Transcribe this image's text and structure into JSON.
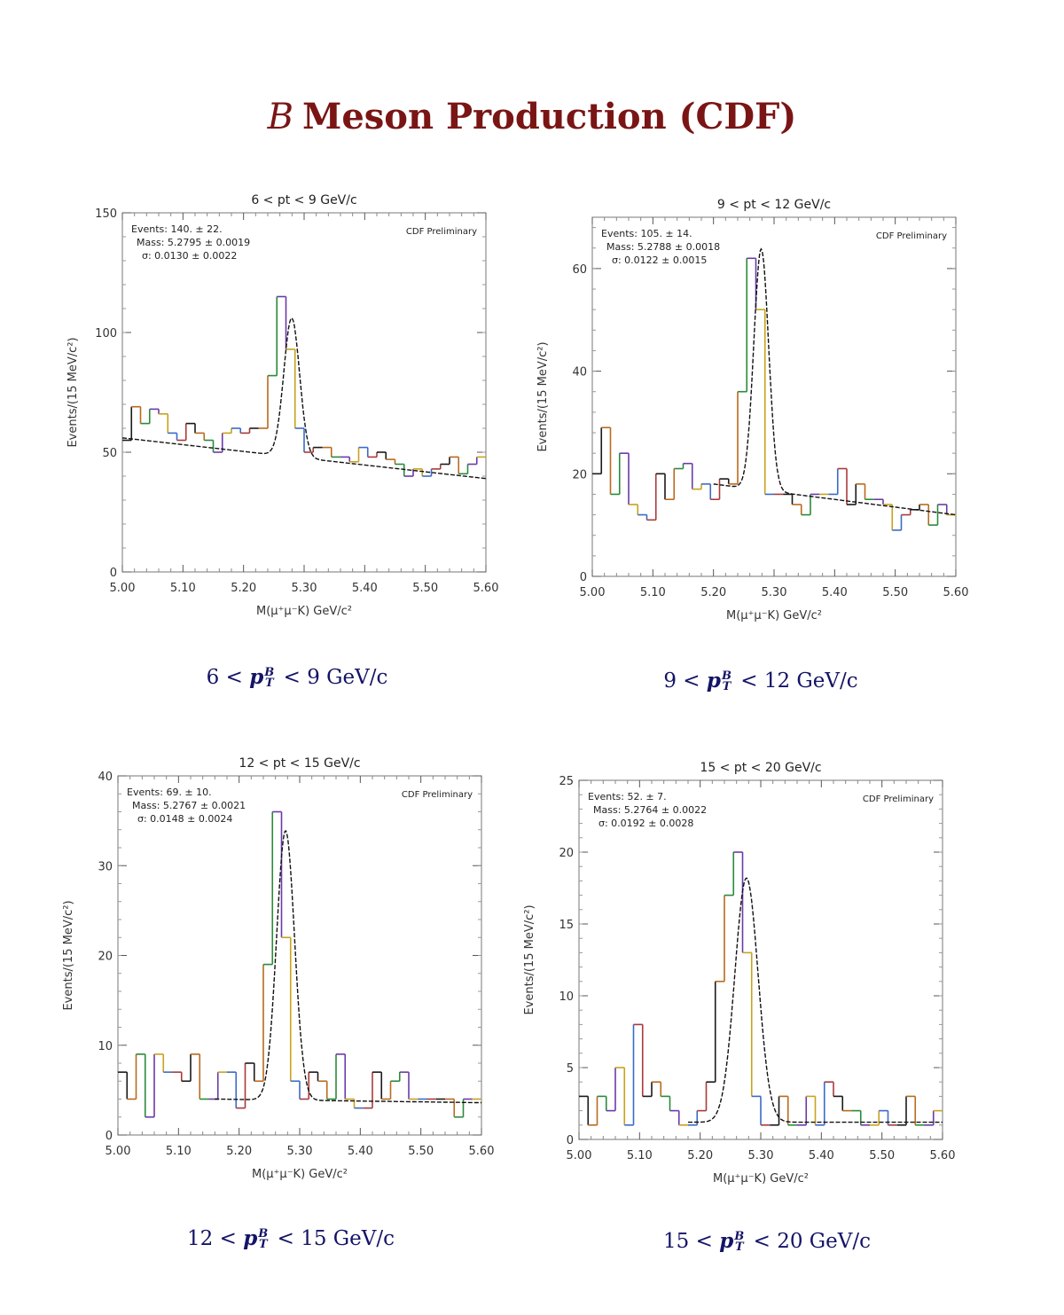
{
  "page_title": {
    "symbol": "B",
    "text": "Meson Production (CDF)"
  },
  "captions": [
    {
      "lo": "6",
      "sym": "p",
      "sup": "B",
      "sub": "T",
      "hi": "9 GeV/c"
    },
    {
      "lo": "9",
      "sym": "p",
      "sup": "B",
      "sub": "T",
      "hi": "12 GeV/c"
    },
    {
      "lo": "12",
      "sym": "p",
      "sup": "B",
      "sub": "T",
      "hi": "15 GeV/c"
    },
    {
      "lo": "15",
      "sym": "p",
      "sup": "B",
      "sub": "T",
      "hi": "20 GeV/c"
    }
  ],
  "chart_data": [
    {
      "type": "line",
      "title": "6 < pt < 9 GeV/c",
      "xlabel": "M(μ⁺μ⁻K) GeV/c²",
      "ylabel": "Events/(15 MeV/c²)",
      "xlim": [
        5.0,
        5.6
      ],
      "ylim": [
        0,
        150
      ],
      "xticks": [
        "5.00",
        "5.10",
        "5.20",
        "5.30",
        "5.40",
        "5.50",
        "5.60"
      ],
      "yticks": [
        0,
        50,
        100,
        150
      ],
      "stats": [
        "Events: 140. ± 22.",
        "Mass: 5.2795 ± 0.0019",
        "σ: 0.0130 ± 0.0022"
      ],
      "annotation": "CDF Preliminary",
      "bin_edges": [
        5.0,
        5.015,
        5.03,
        5.045,
        5.06,
        5.075,
        5.09,
        5.105,
        5.12,
        5.135,
        5.15,
        5.165,
        5.18,
        5.195,
        5.21,
        5.225,
        5.24,
        5.255,
        5.27,
        5.285,
        5.3,
        5.315,
        5.33,
        5.345,
        5.36,
        5.375,
        5.39,
        5.405,
        5.42,
        5.435,
        5.45,
        5.465,
        5.48,
        5.495,
        5.51,
        5.525,
        5.54,
        5.555,
        5.57,
        5.585,
        5.6
      ],
      "counts": [
        55,
        69,
        62,
        68,
        66,
        58,
        55,
        62,
        58,
        55,
        50,
        58,
        60,
        58,
        60,
        60,
        82,
        115,
        93,
        60,
        50,
        52,
        52,
        48,
        48,
        46,
        52,
        48,
        50,
        47,
        45,
        40,
        43,
        40,
        43,
        45,
        48,
        41,
        45,
        48
      ],
      "fit": {
        "background": [
          [
            5.0,
            56
          ],
          [
            5.6,
            39
          ]
        ],
        "mean": 5.2795,
        "sigma": 0.013,
        "amplitude": 58
      }
    },
    {
      "type": "line",
      "title": "9 < pt < 12 GeV/c",
      "xlabel": "M(μ⁺μ⁻K) GeV/c²",
      "ylabel": "Events/(15 MeV/c²)",
      "xlim": [
        5.0,
        5.6
      ],
      "ylim": [
        0,
        70
      ],
      "xticks": [
        "5.00",
        "5.10",
        "5.20",
        "5.30",
        "5.40",
        "5.50",
        "5.60"
      ],
      "yticks": [
        0,
        20,
        40,
        60
      ],
      "stats": [
        "Events: 105. ± 14.",
        "Mass: 5.2788 ± 0.0018",
        "σ: 0.0122 ± 0.0015"
      ],
      "annotation": "CDF Preliminary",
      "bin_edges": [
        5.0,
        5.015,
        5.03,
        5.045,
        5.06,
        5.075,
        5.09,
        5.105,
        5.12,
        5.135,
        5.15,
        5.165,
        5.18,
        5.195,
        5.21,
        5.225,
        5.24,
        5.255,
        5.27,
        5.285,
        5.3,
        5.315,
        5.33,
        5.345,
        5.36,
        5.375,
        5.39,
        5.405,
        5.42,
        5.435,
        5.45,
        5.465,
        5.48,
        5.495,
        5.51,
        5.525,
        5.54,
        5.555,
        5.57,
        5.585,
        5.6
      ],
      "counts": [
        20,
        29,
        16,
        24,
        14,
        12,
        11,
        20,
        15,
        21,
        22,
        17,
        18,
        15,
        19,
        18,
        36,
        62,
        52,
        16,
        16,
        16,
        14,
        12,
        16,
        16,
        16,
        21,
        14,
        18,
        15,
        15,
        14,
        9,
        12,
        13,
        14,
        10,
        14,
        12
      ],
      "fit": {
        "background": [
          [
            5.2,
            18
          ],
          [
            5.6,
            12
          ]
        ],
        "mean": 5.2788,
        "sigma": 0.0122,
        "amplitude": 47
      }
    },
    {
      "type": "line",
      "title": "12 < pt < 15 GeV/c",
      "xlabel": "M(μ⁺μ⁻K) GeV/c²",
      "ylabel": "Events/(15 MeV/c²)",
      "xlim": [
        5.0,
        5.6
      ],
      "ylim": [
        0,
        40
      ],
      "xticks": [
        "5.00",
        "5.10",
        "5.20",
        "5.30",
        "5.40",
        "5.50",
        "5.60"
      ],
      "yticks": [
        0,
        10,
        20,
        30,
        40
      ],
      "stats": [
        "Events: 69. ± 10.",
        "Mass: 5.2767 ± 0.0021",
        "σ: 0.0148 ± 0.0024"
      ],
      "annotation": "CDF Preliminary",
      "bin_edges": [
        5.0,
        5.015,
        5.03,
        5.045,
        5.06,
        5.075,
        5.09,
        5.105,
        5.12,
        5.135,
        5.15,
        5.165,
        5.18,
        5.195,
        5.21,
        5.225,
        5.24,
        5.255,
        5.27,
        5.285,
        5.3,
        5.315,
        5.33,
        5.345,
        5.36,
        5.375,
        5.39,
        5.405,
        5.42,
        5.435,
        5.45,
        5.465,
        5.48,
        5.495,
        5.51,
        5.525,
        5.54,
        5.555,
        5.57,
        5.585,
        5.6
      ],
      "counts": [
        7,
        4,
        9,
        2,
        9,
        7,
        7,
        6,
        9,
        4,
        4,
        7,
        7,
        3,
        8,
        6,
        19,
        36,
        22,
        6,
        4,
        7,
        6,
        4,
        9,
        4,
        3,
        3,
        7,
        4,
        6,
        7,
        4,
        4,
        4,
        4,
        4,
        2,
        4,
        4
      ],
      "fit": {
        "background": [
          [
            5.16,
            4
          ],
          [
            5.6,
            3.6
          ]
        ],
        "mean": 5.2767,
        "sigma": 0.0148,
        "amplitude": 30
      }
    },
    {
      "type": "line",
      "title": "15 < pt < 20 GeV/c",
      "xlabel": "M(μ⁺μ⁻K) GeV/c²",
      "ylabel": "Events/(15 MeV/c²)",
      "xlim": [
        5.0,
        5.6
      ],
      "ylim": [
        0,
        25
      ],
      "xticks": [
        "5.00",
        "5.10",
        "5.20",
        "5.30",
        "5.40",
        "5.50",
        "5.60"
      ],
      "yticks": [
        0,
        5,
        10,
        15,
        20,
        25
      ],
      "stats": [
        "Events: 52. ± 7.",
        "Mass: 5.2764 ± 0.0022",
        "σ: 0.0192 ± 0.0028"
      ],
      "annotation": "CDF Preliminary",
      "bin_edges": [
        5.0,
        5.015,
        5.03,
        5.045,
        5.06,
        5.075,
        5.09,
        5.105,
        5.12,
        5.135,
        5.15,
        5.165,
        5.18,
        5.195,
        5.21,
        5.225,
        5.24,
        5.255,
        5.27,
        5.285,
        5.3,
        5.315,
        5.33,
        5.345,
        5.36,
        5.375,
        5.39,
        5.405,
        5.42,
        5.435,
        5.45,
        5.465,
        5.48,
        5.495,
        5.51,
        5.525,
        5.54,
        5.555,
        5.57,
        5.585,
        5.6
      ],
      "counts": [
        3,
        1,
        3,
        2,
        5,
        1,
        8,
        3,
        4,
        3,
        2,
        1,
        1,
        2,
        4,
        11,
        17,
        20,
        13,
        3,
        1,
        1,
        3,
        1,
        1,
        3,
        1,
        4,
        3,
        2,
        2,
        1,
        1,
        2,
        1,
        1,
        3,
        1,
        1,
        2
      ],
      "fit": {
        "background": [
          [
            5.18,
            1.2
          ],
          [
            5.6,
            1.2
          ]
        ],
        "mean": 5.2764,
        "sigma": 0.0192,
        "amplitude": 17
      }
    }
  ]
}
